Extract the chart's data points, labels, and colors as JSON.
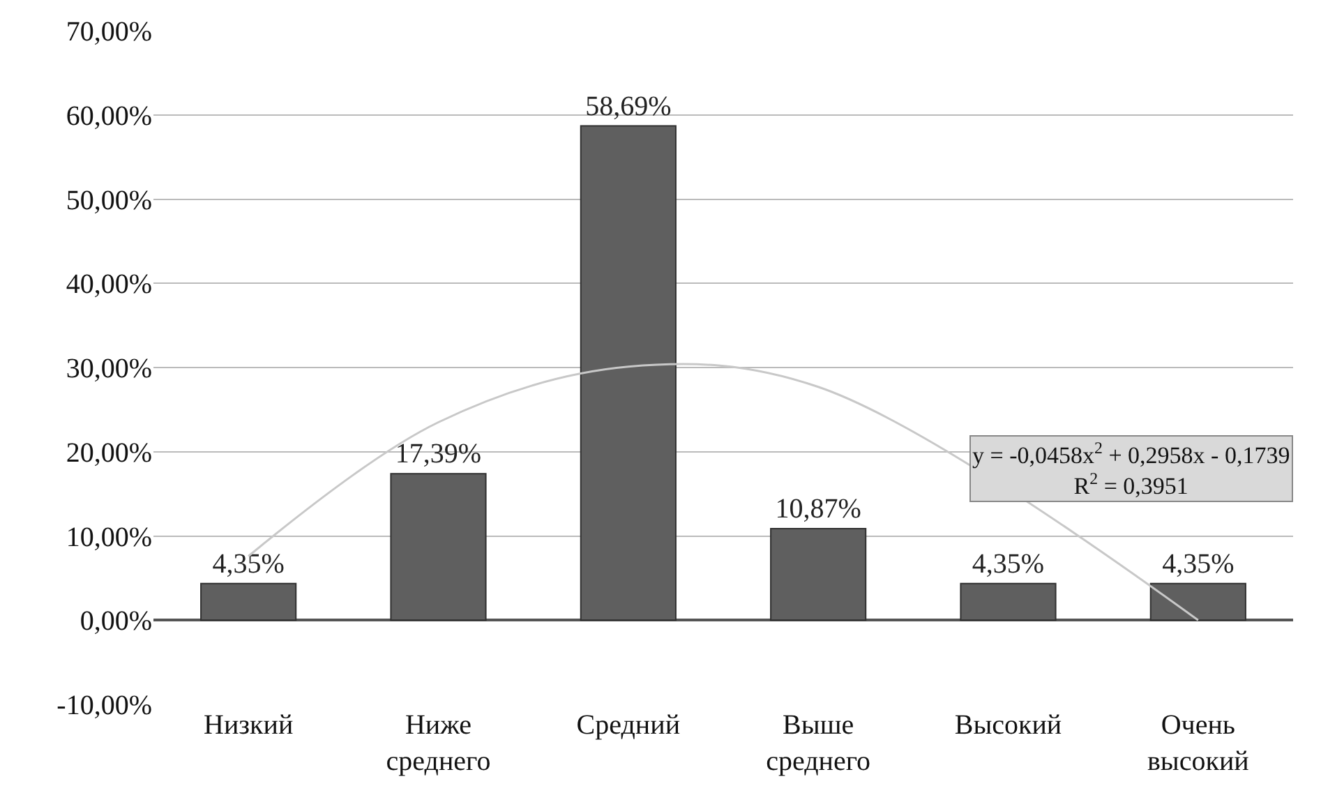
{
  "chart_data": {
    "type": "bar",
    "categories": [
      "Низкий",
      "Ниже\nсреднего",
      "Средний",
      "Выше\nсреднего",
      "Высокий",
      "Очень\nвысокий"
    ],
    "series": [
      {
        "color": "#5f5f5f",
        "values": [
          4.35,
          17.39,
          58.69,
          10.87,
          4.35,
          4.35
        ],
        "value_labels": [
          "4,35%",
          "17,39%",
          "58,69%",
          "10,87%",
          "4,35%",
          "4,35%"
        ]
      },
      {
        "type": "line",
        "color": "#c8c8c8",
        "values": [
          7.6,
          23.5,
          30.1,
          27.7,
          null,
          0
        ]
      }
    ],
    "ylim": [
      -10,
      70
    ],
    "yticks": [
      {
        "value": -10,
        "label": "-10,00%"
      },
      {
        "value": 0,
        "label": "0,00%"
      },
      {
        "value": 10,
        "label": "10,00%"
      },
      {
        "value": 20,
        "label": "20,00%"
      },
      {
        "value": 30,
        "label": "30,00%"
      },
      {
        "value": 40,
        "label": "40,00%"
      },
      {
        "value": 50,
        "label": "50,00%"
      },
      {
        "value": 60,
        "label": "60,00%"
      },
      {
        "value": 70,
        "label": "70,00%"
      }
    ],
    "annotations": [
      "y = -0,0458x$^{2}$ + 0,2958x - 0,1739\nR$^{2}$ = 0,3951"
    ],
    "grid": "y",
    "marker": "none",
    "line_style": "solid"
  }
}
